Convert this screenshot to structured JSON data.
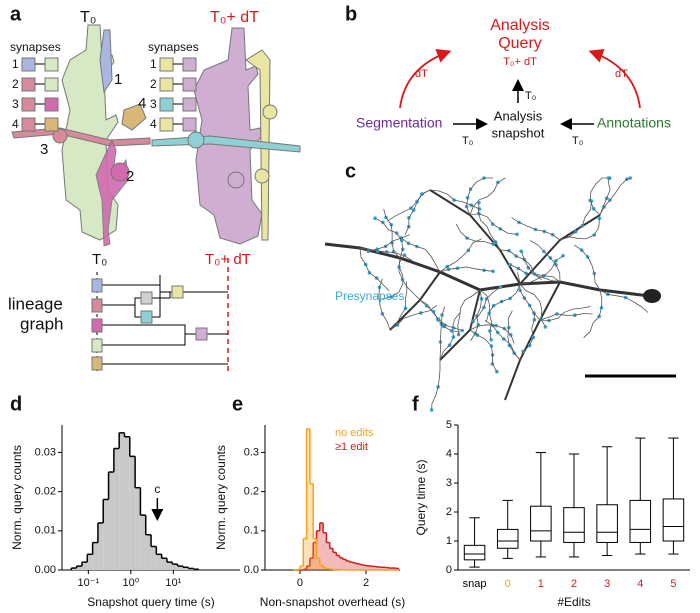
{
  "figure": {
    "panel_labels": [
      "a",
      "b",
      "c",
      "d",
      "e",
      "f"
    ]
  },
  "panel_a": {
    "t0": "T₀",
    "t0_dt": "T₀+ dT",
    "left_synapses": {
      "label": "synapses",
      "numbers": [
        "1",
        "2",
        "3",
        "4"
      ]
    },
    "right_synapses": {
      "label": "synapses",
      "numbers": [
        "1",
        "2",
        "3",
        "4"
      ]
    },
    "callouts": [
      "1",
      "2",
      "3",
      "4"
    ],
    "lineage_label": [
      "lineage",
      "graph"
    ],
    "lineage_t0": "T₀",
    "lineage_t0_dt": "T₀+ dT"
  },
  "panel_b": {
    "query": [
      "Analysis",
      "Query"
    ],
    "query_time": "T₀+ dT",
    "dt_left": "dT",
    "dt_right": "dT",
    "t0_up": "T₀",
    "snapshot": [
      "Analysis",
      "snapshot"
    ],
    "segmentation": "Segmentation",
    "annotations": "Annotations",
    "t0_left": "T₀",
    "t0_right": "T₀"
  },
  "panel_c": {
    "legend": "Presynapses"
  },
  "chart_data": [
    {
      "type": "histogram",
      "xlabel": "Snapshot query time (s)",
      "ylabel": "Norm. query counts",
      "xscale": "log",
      "xlim": [
        0.024,
        370
      ],
      "ylim": [
        0,
        0.037
      ],
      "xticks": [
        {
          "value": 0.1,
          "label": "10⁻¹"
        },
        {
          "value": 1,
          "label": "10⁰"
        },
        {
          "value": 10,
          "label": "10¹"
        }
      ],
      "yticks": [
        {
          "value": 0,
          "label": "0.00"
        },
        0.01,
        0.02,
        0.03
      ],
      "color": "#c8c8c8",
      "edgecolor": "#000000",
      "bins": [
        0.0398,
        0.0531,
        0.0708,
        0.0944,
        0.126,
        0.168,
        0.224,
        0.299,
        0.398,
        0.531,
        0.708,
        0.944,
        1.26,
        1.68,
        2.24,
        2.99,
        3.98,
        5.31,
        7.08,
        9.44,
        12.6,
        16.8,
        22.4,
        29.9,
        39.8
      ],
      "values": [
        0.0005,
        0.001,
        0.002,
        0.004,
        0.007,
        0.012,
        0.018,
        0.025,
        0.031,
        0.035,
        0.034,
        0.029,
        0.021,
        0.014,
        0.009,
        0.006,
        0.004,
        0.003,
        0.002,
        0.0015,
        0.001,
        0.0007,
        0.0004,
        0.0002
      ],
      "annotation": {
        "text": "c",
        "x": 4.2
      }
    },
    {
      "type": "histogram",
      "xlabel": "Non-snapshot overhead (s)",
      "ylabel": "Norm. query counts",
      "xlim": [
        -1.06,
        3.03
      ],
      "ylim": [
        0,
        0.37
      ],
      "xticks": [
        0,
        2
      ],
      "yticks": [
        {
          "value": 0,
          "label": "0.0"
        },
        0.1,
        0.2,
        0.3
      ],
      "legend": "upper right",
      "bins": [
        -0.2,
        -0.1,
        0,
        0.1,
        0.2,
        0.3,
        0.4,
        0.5,
        0.6,
        0.7,
        0.8,
        0.9,
        1.0,
        1.1,
        1.2,
        1.3,
        1.4,
        1.5,
        1.6,
        1.7,
        1.8,
        1.9,
        2.0,
        2.1,
        2.2,
        2.3,
        2.4,
        2.5,
        2.6,
        2.7,
        2.8,
        2.9,
        3.0
      ],
      "series": [
        {
          "name": "no edits",
          "color": "#f5a31a",
          "values": [
            0,
            0.001,
            0.01,
            0.08,
            0.36,
            0.22,
            0.08,
            0.03,
            0.012,
            0.006,
            0.003,
            0.002,
            0.001,
            0.001,
            0.0005,
            0.0005,
            0,
            0,
            0,
            0,
            0,
            0,
            0,
            0,
            0,
            0,
            0,
            0,
            0,
            0,
            0,
            0
          ]
        },
        {
          "name": "≥1 edit",
          "color": "#d7191c",
          "values": [
            0,
            0,
            0,
            0.002,
            0.01,
            0.03,
            0.07,
            0.1,
            0.12,
            0.095,
            0.07,
            0.055,
            0.045,
            0.037,
            0.031,
            0.027,
            0.023,
            0.02,
            0.018,
            0.016,
            0.014,
            0.012,
            0.011,
            0.01,
            0.009,
            0.008,
            0.007,
            0.007,
            0.006,
            0.005,
            0.005,
            0.004
          ]
        }
      ]
    },
    {
      "type": "box",
      "xlabel": "#Edits",
      "ylabel": "Query time (s)",
      "categories": [
        "snap",
        "0",
        "1",
        "2",
        "3",
        "4",
        "5"
      ],
      "label_colors": [
        "#000000",
        "#f5a31a",
        "#d7191c",
        "#d7191c",
        "#d7191c",
        "#d7191c",
        "#d7191c"
      ],
      "ylim": [
        0,
        5
      ],
      "yticks": [
        0,
        1,
        2,
        3,
        4,
        5
      ],
      "whislo": [
        0.1,
        0.4,
        0.45,
        0.45,
        0.5,
        0.55,
        0.55
      ],
      "q1": [
        0.35,
        0.75,
        1.0,
        0.95,
        0.95,
        0.95,
        1.0
      ],
      "median": [
        0.55,
        1.0,
        1.35,
        1.3,
        1.3,
        1.4,
        1.5
      ],
      "q3": [
        0.85,
        1.4,
        2.2,
        2.15,
        2.25,
        2.4,
        2.45
      ],
      "whishi": [
        1.8,
        2.4,
        4.05,
        4.0,
        4.25,
        4.55,
        4.55
      ]
    }
  ]
}
